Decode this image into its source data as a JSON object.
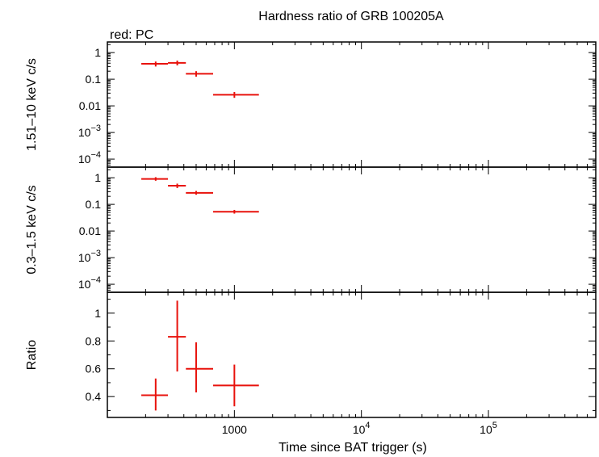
{
  "chart_data": {
    "type": "scatter",
    "title": "Hardness ratio of GRB 100205A",
    "subtitle": "red: PC",
    "xlabel": "Time since BAT trigger (s)",
    "xscale": "log",
    "xlim": [
      100,
      700000
    ],
    "x_ticks": [
      {
        "value": 1000,
        "label": "1000"
      },
      {
        "value": 10000,
        "label": "10^4"
      },
      {
        "value": 100000,
        "label": "10^5"
      }
    ],
    "series_color": "#e8120c",
    "panels": [
      {
        "id": "hard",
        "ylabel": "1.51–10 keV c/s",
        "yscale": "log",
        "ylim": [
          5e-05,
          2.5
        ],
        "y_ticks": [
          {
            "value": 1,
            "label": "1"
          },
          {
            "value": 0.1,
            "label": "0.1"
          },
          {
            "value": 0.01,
            "label": "0.01"
          },
          {
            "value": 0.001,
            "label": "10^-3"
          },
          {
            "value": 0.0001,
            "label": "10^-4"
          }
        ],
        "points": [
          {
            "x": 240,
            "xlo": 185,
            "xhi": 300,
            "y": 0.38,
            "ylo": 0.3,
            "yhi": 0.46
          },
          {
            "x": 355,
            "xlo": 300,
            "xhi": 415,
            "y": 0.41,
            "ylo": 0.33,
            "yhi": 0.5
          },
          {
            "x": 500,
            "xlo": 415,
            "xhi": 680,
            "y": 0.16,
            "ylo": 0.125,
            "yhi": 0.2
          },
          {
            "x": 1000,
            "xlo": 680,
            "xhi": 1560,
            "y": 0.026,
            "ylo": 0.02,
            "yhi": 0.033
          }
        ]
      },
      {
        "id": "soft",
        "ylabel": "0.3–1.5 keV c/s",
        "yscale": "log",
        "ylim": [
          5e-05,
          2.5
        ],
        "y_ticks": [
          {
            "value": 1,
            "label": "1"
          },
          {
            "value": 0.1,
            "label": "0.1"
          },
          {
            "value": 0.01,
            "label": "0.01"
          },
          {
            "value": 0.001,
            "label": "10^-3"
          },
          {
            "value": 0.0001,
            "label": "10^-4"
          }
        ],
        "points": [
          {
            "x": 240,
            "xlo": 185,
            "xhi": 300,
            "y": 0.9,
            "ylo": 0.77,
            "yhi": 1.05
          },
          {
            "x": 355,
            "xlo": 300,
            "xhi": 415,
            "y": 0.5,
            "ylo": 0.41,
            "yhi": 0.6
          },
          {
            "x": 500,
            "xlo": 415,
            "xhi": 680,
            "y": 0.27,
            "ylo": 0.23,
            "yhi": 0.32
          },
          {
            "x": 1000,
            "xlo": 680,
            "xhi": 1560,
            "y": 0.053,
            "ylo": 0.045,
            "yhi": 0.062
          }
        ]
      },
      {
        "id": "ratio",
        "ylabel": "Ratio",
        "yscale": "linear",
        "ylim": [
          0.25,
          1.15
        ],
        "y_ticks": [
          {
            "value": 1,
            "label": "1"
          },
          {
            "value": 0.8,
            "label": "0.8"
          },
          {
            "value": 0.6,
            "label": "0.6"
          },
          {
            "value": 0.4,
            "label": "0.4"
          }
        ],
        "points": [
          {
            "x": 240,
            "xlo": 185,
            "xhi": 300,
            "y": 0.41,
            "ylo": 0.3,
            "yhi": 0.53
          },
          {
            "x": 355,
            "xlo": 300,
            "xhi": 415,
            "y": 0.83,
            "ylo": 0.58,
            "yhi": 1.09
          },
          {
            "x": 500,
            "xlo": 415,
            "xhi": 680,
            "y": 0.6,
            "ylo": 0.43,
            "yhi": 0.79
          },
          {
            "x": 1000,
            "xlo": 680,
            "xhi": 1560,
            "y": 0.48,
            "ylo": 0.33,
            "yhi": 0.63
          }
        ]
      }
    ]
  }
}
